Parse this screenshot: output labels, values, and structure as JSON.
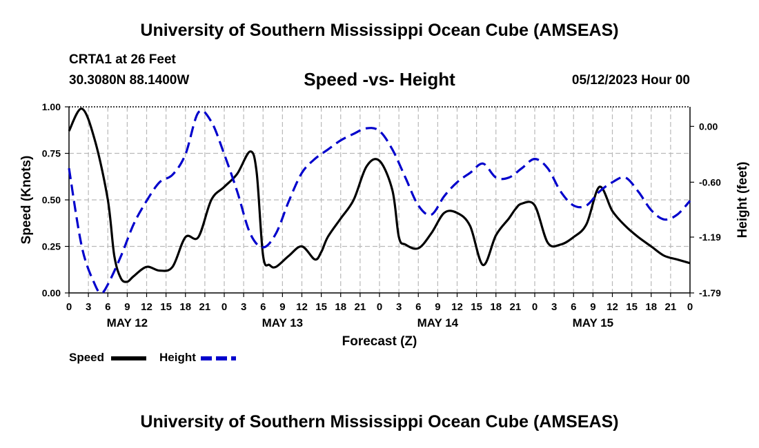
{
  "header": {
    "title": "University of Southern Mississippi Ocean Cube (AMSEAS)",
    "station": "CRTA1 at 26 Feet",
    "coordinates": "30.3080N  88.1400W",
    "subtitle": "Speed -vs- Height",
    "datetime": "05/12/2023 Hour 00"
  },
  "footer": {
    "title": "University of Southern Mississippi Ocean Cube (AMSEAS)"
  },
  "chart_data": {
    "type": "line",
    "title": "Speed -vs- Height",
    "xlabel": "Forecast (Z)",
    "ylabel": "Speed (Knots)",
    "y2label": "Height (feet)",
    "xlim": [
      0,
      96
    ],
    "ylim": [
      0,
      1
    ],
    "y2lim": [
      -1.79,
      0.21
    ],
    "x_ticks": [
      0,
      3,
      6,
      9,
      12,
      15,
      18,
      21,
      24,
      27,
      30,
      33,
      36,
      39,
      42,
      45,
      48,
      51,
      54,
      57,
      60,
      63,
      66,
      69,
      72,
      75,
      78,
      81,
      84,
      87,
      90,
      93,
      96
    ],
    "x_tick_labels": [
      "0",
      "3",
      "6",
      "9",
      "12",
      "15",
      "18",
      "21",
      "0",
      "3",
      "6",
      "9",
      "12",
      "15",
      "18",
      "21",
      "0",
      "3",
      "6",
      "9",
      "12",
      "15",
      "18",
      "21",
      "0",
      "3",
      "6",
      "9",
      "12",
      "15",
      "18",
      "21",
      "0"
    ],
    "day_labels": [
      {
        "x": 9,
        "label": "MAY 12"
      },
      {
        "x": 33,
        "label": "MAY 13"
      },
      {
        "x": 57,
        "label": "MAY 14"
      },
      {
        "x": 81,
        "label": "MAY 15"
      }
    ],
    "y_ticks": [
      0,
      0.25,
      0.5,
      0.75,
      1
    ],
    "y_tick_labels": [
      "0.00",
      "0.25",
      "0.50",
      "0.75",
      "1.00"
    ],
    "y2_ticks": [
      0,
      -0.6,
      -1.19,
      -1.79
    ],
    "y2_tick_labels": [
      "0.00",
      "-0.60",
      "-1.19",
      "-1.79"
    ],
    "grid": true,
    "legend_position": "bottom-left",
    "series": [
      {
        "name": "Speed",
        "color": "#000000",
        "dash": "solid",
        "axis": "left",
        "x": [
          0,
          2,
          4,
          6,
          7,
          8,
          9,
          10,
          12,
          14,
          16,
          18,
          20,
          22,
          24,
          26,
          28,
          29,
          30,
          31,
          32,
          34,
          36,
          38,
          39,
          40,
          42,
          44,
          46,
          48,
          50,
          51,
          52,
          54,
          56,
          58,
          60,
          62,
          64,
          66,
          68,
          69,
          70,
          72,
          74,
          76,
          78,
          80,
          82,
          84,
          86,
          88,
          90,
          92,
          94,
          96
        ],
        "y": [
          0.87,
          0.99,
          0.82,
          0.5,
          0.2,
          0.08,
          0.06,
          0.09,
          0.14,
          0.12,
          0.14,
          0.3,
          0.3,
          0.5,
          0.57,
          0.64,
          0.76,
          0.65,
          0.2,
          0.15,
          0.14,
          0.2,
          0.25,
          0.18,
          0.22,
          0.3,
          0.4,
          0.5,
          0.68,
          0.71,
          0.55,
          0.3,
          0.26,
          0.24,
          0.32,
          0.43,
          0.43,
          0.36,
          0.15,
          0.31,
          0.4,
          0.45,
          0.48,
          0.47,
          0.27,
          0.26,
          0.3,
          0.37,
          0.57,
          0.44,
          0.36,
          0.3,
          0.25,
          0.2,
          0.18,
          0.16
        ]
      },
      {
        "name": "Height",
        "color": "#0000cc",
        "dash": "dashed",
        "axis": "right",
        "x": [
          0,
          2,
          4,
          5,
          6,
          8,
          10,
          12,
          14,
          16,
          18,
          20,
          22,
          24,
          26,
          28,
          30,
          32,
          34,
          36,
          38,
          40,
          42,
          44,
          46,
          48,
          50,
          52,
          54,
          56,
          58,
          60,
          62,
          64,
          66,
          68,
          70,
          72,
          74,
          76,
          78,
          80,
          82,
          84,
          86,
          88,
          90,
          92,
          94,
          96
        ],
        "y": [
          -0.45,
          -1.3,
          -1.7,
          -1.79,
          -1.7,
          -1.4,
          -1.05,
          -0.8,
          -0.6,
          -0.52,
          -0.3,
          0.15,
          0.05,
          -0.3,
          -0.7,
          -1.15,
          -1.3,
          -1.15,
          -0.8,
          -0.5,
          -0.35,
          -0.25,
          -0.15,
          -0.08,
          -0.02,
          -0.05,
          -0.25,
          -0.55,
          -0.85,
          -0.95,
          -0.75,
          -0.6,
          -0.5,
          -0.4,
          -0.55,
          -0.55,
          -0.45,
          -0.35,
          -0.45,
          -0.7,
          -0.85,
          -0.85,
          -0.7,
          -0.6,
          -0.55,
          -0.7,
          -0.9,
          -1.0,
          -0.95,
          -0.8
        ]
      }
    ]
  }
}
